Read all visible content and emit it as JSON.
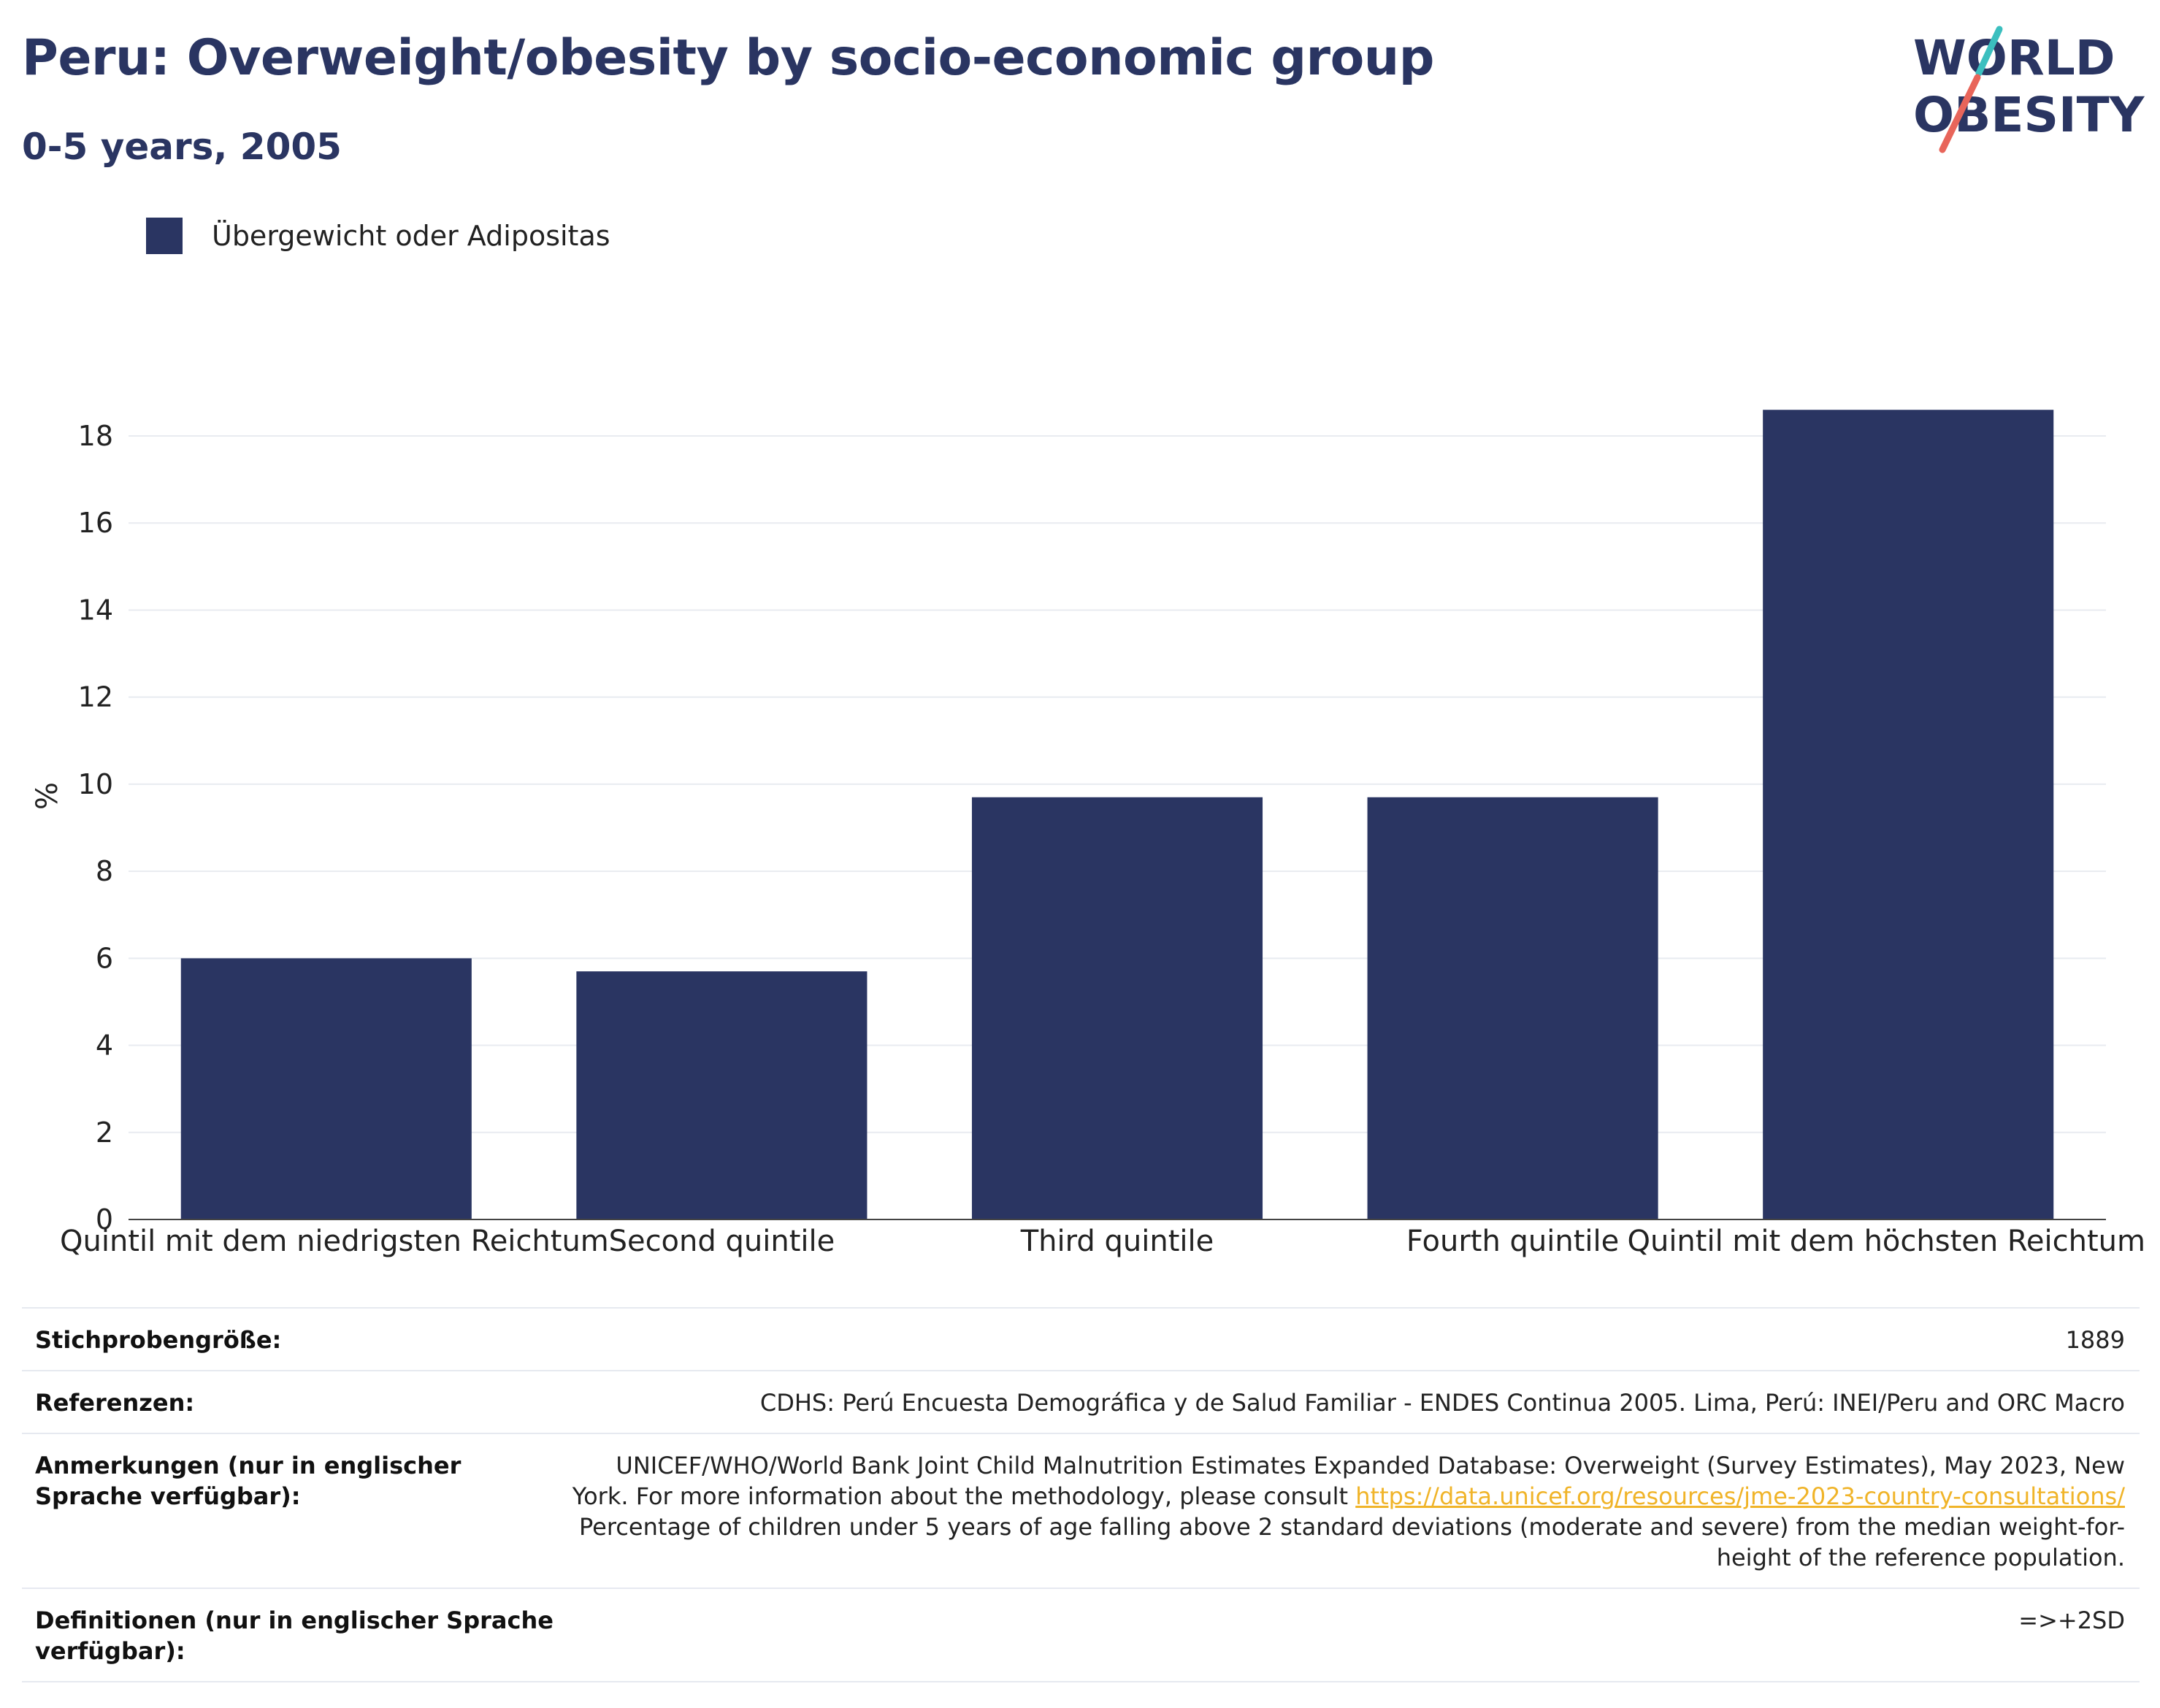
{
  "header": {
    "title": "Peru: Overweight/obesity by socio-economic group",
    "subtitle": "0-5 years, 2005"
  },
  "logo": {
    "line1": "WORLD",
    "line2": "OBESITY",
    "colors": {
      "text": "#2a3562",
      "slash_teal": "#3bbfbf",
      "slash_red": "#e8655a"
    }
  },
  "legend": {
    "label": "Übergewicht oder Adipositas",
    "color": "#2a3562",
    "placement": "top-left"
  },
  "chart_data": {
    "type": "bar",
    "categories": [
      "Quintil mit dem niedrigsten Reichtum",
      "Second quintile",
      "Third quintile",
      "Fourth quintile",
      "Quintil mit dem höchsten Reichtum"
    ],
    "series": [
      {
        "name": "Übergewicht oder Adipositas",
        "values": [
          6.0,
          5.7,
          9.7,
          9.7,
          18.6
        ],
        "color": "#2a3562"
      }
    ],
    "ylabel": "%",
    "ylim": [
      0,
      20
    ],
    "yticks": [
      0,
      2,
      4,
      6,
      8,
      10,
      12,
      14,
      16,
      18
    ],
    "grid": true
  },
  "info": {
    "sample_label": "Stichprobengröße:",
    "sample_value": "1889",
    "references_label": "Referenzen:",
    "references_value": "CDHS: Perú Encuesta Demográfica y de Salud Familiar - ENDES Continua 2005. Lima, Perú: INEI/Peru and ORC Macro",
    "notes_label": "Anmerkungen (nur in englischer Sprache verfügbar):",
    "notes_text_1": "UNICEF/WHO/World Bank Joint Child Malnutrition Estimates Expanded Database: Overweight (Survey Estimates), May 2023, New York. For more information about the methodology, please consult ",
    "notes_link": "https://data.unicef.org/resources/jme-2023-country-consultations/",
    "notes_text_2": "Percentage of children under 5 years of age falling above 2 standard deviations (moderate and severe) from the median weight-for-height of the reference population.",
    "definitions_label": "Definitionen (nur in englischer Sprache verfügbar):",
    "definitions_value": "=>+2SD"
  }
}
